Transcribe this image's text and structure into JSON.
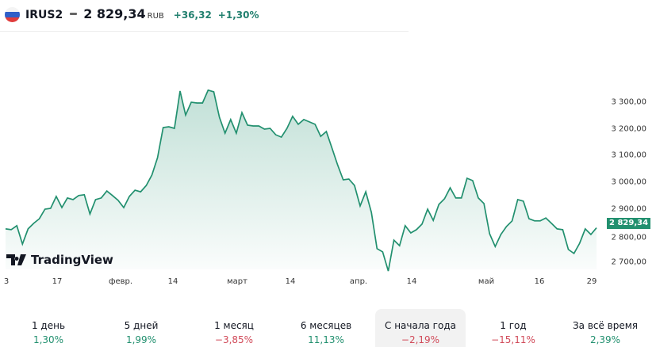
{
  "header": {
    "symbol": "IRUS2",
    "price": "2 829,34",
    "currency": "RUB",
    "change": "+36,32",
    "change_percent": "+1,30%",
    "flag_icon": "russia-flag-icon"
  },
  "logo": {
    "text": "TradingView"
  },
  "colors": {
    "line": "#22906f",
    "positive": "#22906f",
    "negative": "#d14b5a"
  },
  "chart_data": {
    "type": "area",
    "title": "IRUS2",
    "ylabel": "",
    "xlabel": "",
    "ylim": [
      2670,
      3350
    ],
    "y_ticks": [
      "3 300,00",
      "3 200,00",
      "3 100,00",
      "3 000,00",
      "2 900,00",
      "2 800,00",
      "2 700,00"
    ],
    "y_tick_values": [
      3300,
      3200,
      3100,
      3000,
      2900,
      2800,
      2700
    ],
    "x_ticks": [
      "3",
      "17",
      "февр.",
      "14",
      "март",
      "14",
      "апр.",
      "14",
      "май",
      "16",
      "29"
    ],
    "last_value_label": "2 829,34",
    "values": [
      2825,
      2822,
      2837,
      2768,
      2825,
      2846,
      2863,
      2899,
      2902,
      2947,
      2905,
      2941,
      2935,
      2950,
      2953,
      2881,
      2935,
      2941,
      2967,
      2950,
      2932,
      2905,
      2947,
      2970,
      2964,
      2988,
      3027,
      3092,
      3205,
      3208,
      3202,
      3342,
      3252,
      3300,
      3297,
      3297,
      3345,
      3339,
      3244,
      3184,
      3235,
      3184,
      3261,
      3214,
      3211,
      3211,
      3199,
      3202,
      3178,
      3169,
      3202,
      3247,
      3217,
      3235,
      3226,
      3217,
      3172,
      3190,
      3128,
      3065,
      3009,
      3012,
      2988,
      2911,
      2964,
      2887,
      2751,
      2739,
      2667,
      2783,
      2762,
      2837,
      2810,
      2822,
      2843,
      2899,
      2857,
      2917,
      2938,
      2979,
      2941,
      2941,
      3015,
      3006,
      2941,
      2920,
      2807,
      2759,
      2804,
      2834,
      2855,
      2935,
      2929,
      2863,
      2855,
      2855,
      2866,
      2846,
      2825,
      2822,
      2748,
      2733,
      2771,
      2825,
      2804,
      2829
    ]
  },
  "periods": [
    {
      "label": "1 день",
      "value": "1,30%",
      "sign": "pos"
    },
    {
      "label": "5 дней",
      "value": "1,99%",
      "sign": "pos"
    },
    {
      "label": "1 месяц",
      "value": "−3,85%",
      "sign": "neg"
    },
    {
      "label": "6 месяцев",
      "value": "11,13%",
      "sign": "pos"
    },
    {
      "label": "С начала года",
      "value": "−2,19%",
      "sign": "neg",
      "active": true
    },
    {
      "label": "1 год",
      "value": "−15,11%",
      "sign": "neg"
    },
    {
      "label": "За всё время",
      "value": "2,39%",
      "sign": "pos"
    }
  ]
}
